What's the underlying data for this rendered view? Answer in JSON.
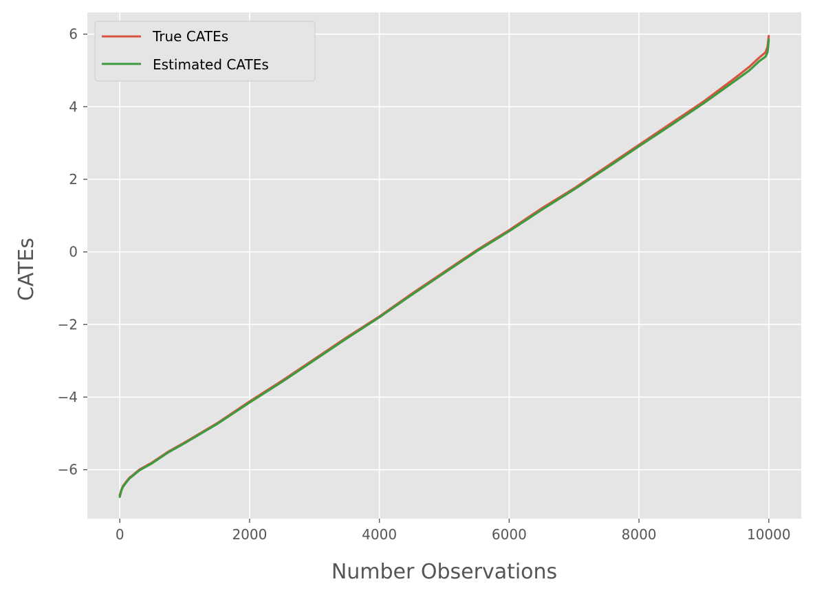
{
  "chart_data": {
    "type": "line",
    "xlabel": "Number Observations",
    "ylabel": "CATEs",
    "xlim": [
      -500,
      10500
    ],
    "ylim": [
      -7.35,
      6.6
    ],
    "xticks": [
      0,
      2000,
      4000,
      6000,
      8000,
      10000
    ],
    "xtick_labels": [
      "0",
      "2000",
      "4000",
      "6000",
      "8000",
      "10000"
    ],
    "yticks": [
      -6,
      -4,
      -2,
      0,
      2,
      4,
      6
    ],
    "ytick_labels": [
      "−6",
      "−4",
      "−2",
      "0",
      "2",
      "4",
      "6"
    ],
    "grid": true,
    "legend_position": "top-left",
    "style": {
      "plot_background": "#e5e5e5",
      "grid_color": "#ffffff"
    },
    "series": [
      {
        "name": "True CATEs",
        "color": "#d9533f",
        "x": [
          0,
          25,
          50,
          100,
          150,
          200,
          300,
          400,
          500,
          750,
          1000,
          1500,
          2000,
          2500,
          3000,
          3500,
          4000,
          4500,
          5000,
          5500,
          6000,
          6500,
          7000,
          7500,
          8000,
          8500,
          9000,
          9500,
          9700,
          9850,
          9950,
          9980,
          9990,
          9999
        ],
        "y": [
          -6.7,
          -6.55,
          -6.45,
          -6.33,
          -6.22,
          -6.15,
          -6.0,
          -5.9,
          -5.8,
          -5.5,
          -5.25,
          -4.72,
          -4.12,
          -3.55,
          -2.95,
          -2.35,
          -1.78,
          -1.15,
          -0.55,
          0.05,
          0.6,
          1.2,
          1.75,
          2.35,
          2.95,
          3.55,
          4.15,
          4.82,
          5.1,
          5.35,
          5.5,
          5.65,
          5.8,
          5.95
        ]
      },
      {
        "name": "Estimated CATEs",
        "color": "#3f9a3f",
        "x": [
          0,
          25,
          50,
          100,
          150,
          200,
          300,
          400,
          500,
          750,
          1000,
          1500,
          2000,
          2500,
          3000,
          3500,
          4000,
          4500,
          5000,
          5500,
          6000,
          6500,
          7000,
          7500,
          8000,
          8500,
          9000,
          9500,
          9700,
          9850,
          9950,
          9980,
          9990,
          9999
        ],
        "y": [
          -6.75,
          -6.57,
          -6.47,
          -6.35,
          -6.24,
          -6.17,
          -6.02,
          -5.92,
          -5.82,
          -5.52,
          -5.27,
          -4.74,
          -4.15,
          -3.58,
          -2.98,
          -2.38,
          -1.8,
          -1.18,
          -0.58,
          0.02,
          0.57,
          1.16,
          1.72,
          2.31,
          2.91,
          3.5,
          4.1,
          4.74,
          5.0,
          5.25,
          5.38,
          5.5,
          5.65,
          5.85
        ]
      }
    ]
  }
}
